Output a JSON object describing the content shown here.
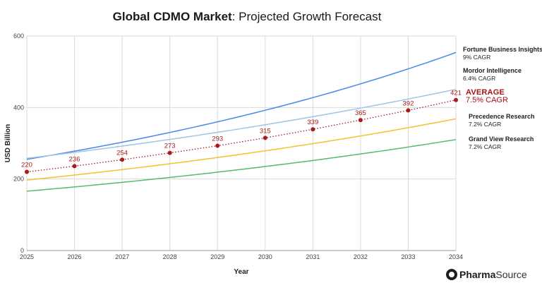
{
  "chart_data": {
    "type": "line",
    "title_bold": "Global CDMO Market",
    "title_rest": ": Projected Growth Forecast",
    "xlabel": "Year",
    "ylabel": "USD Billion",
    "ylim": [
      0,
      600
    ],
    "yticks": [
      0,
      200,
      400,
      600
    ],
    "x": [
      2025,
      2026,
      2027,
      2028,
      2029,
      2030,
      2031,
      2032,
      2033,
      2034
    ],
    "grid": true,
    "series": [
      {
        "id": "fbi",
        "name": "Fortune Business Insights",
        "cagr_label": "9% CAGR",
        "color": "#4a86e8",
        "start": 255,
        "rate": 0.09
      },
      {
        "id": "mordor",
        "name": "Mordor Intelligence",
        "cagr_label": "6.4% CAGR",
        "color": "#9fc5e8",
        "start": 258,
        "rate": 0.064
      },
      {
        "id": "avg",
        "name": "AVERAGE",
        "cagr_label": "7.5% CAGR",
        "color": "#a61c1c",
        "dashed": true,
        "values": [
          220,
          236,
          254,
          273,
          293,
          315,
          339,
          365,
          392,
          421
        ],
        "labels": [
          "220",
          "236",
          "254",
          "273",
          "293",
          "315",
          "339",
          "365",
          "392",
          "421"
        ]
      },
      {
        "id": "prec",
        "name": "Precedence Research",
        "cagr_label": "7.2% CAGR",
        "color": "#f1c232",
        "start": 197,
        "rate": 0.072
      },
      {
        "id": "gvr",
        "name": "Grand View Research",
        "cagr_label": "7.2% CAGR",
        "color": "#57bb6b",
        "start": 166,
        "rate": 0.072
      }
    ]
  },
  "brand": {
    "word1": "Pharma",
    "word2": "Source"
  }
}
